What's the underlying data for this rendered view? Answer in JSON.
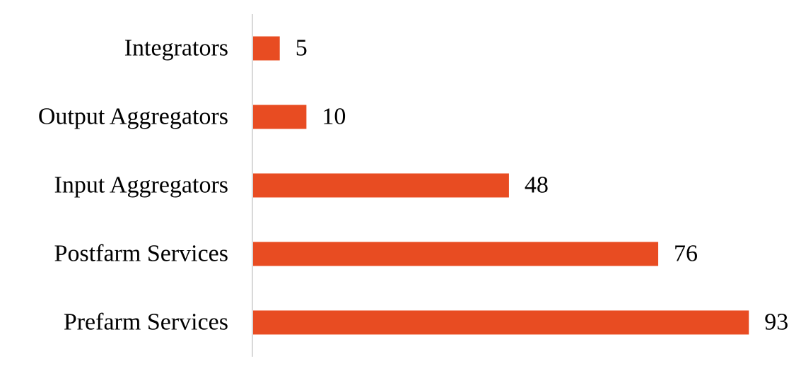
{
  "chart_data": {
    "type": "bar",
    "orientation": "horizontal",
    "categories": [
      "Integrators",
      "Output Aggregators",
      "Input Aggregators",
      "Postfarm Services",
      "Prefarm Services"
    ],
    "values": [
      5,
      10,
      48,
      76,
      93
    ],
    "color": "#e84c22",
    "xlim": [
      0,
      100
    ]
  }
}
